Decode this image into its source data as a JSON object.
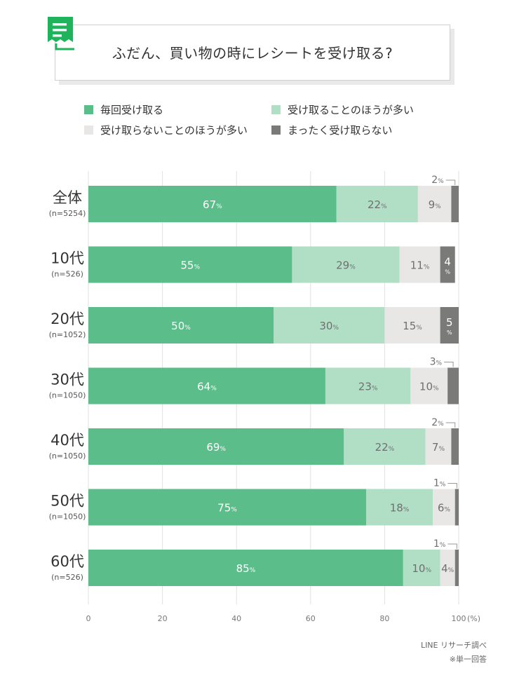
{
  "title": "ふだん、買い物の時にレシートを受け取る?",
  "icon": "receipt-icon",
  "footer": {
    "source": "LINE リサーチ調べ",
    "note": "※単一回答"
  },
  "chart_data": {
    "type": "bar",
    "orientation": "horizontal",
    "stacked": true,
    "unit": "%",
    "xlim": [
      0,
      100
    ],
    "xticks": [
      "0",
      "20",
      "40",
      "60",
      "80",
      "100"
    ],
    "xunit_label": "(%)",
    "grid": true,
    "legend_position": "top",
    "categories": [
      {
        "label": "全体",
        "sub": "(n=5254)"
      },
      {
        "label": "10代",
        "sub": "(n=526)"
      },
      {
        "label": "20代",
        "sub": "(n=1052)"
      },
      {
        "label": "30代",
        "sub": "(n=1050)"
      },
      {
        "label": "40代",
        "sub": "(n=1050)"
      },
      {
        "label": "50代",
        "sub": "(n=1050)"
      },
      {
        "label": "60代",
        "sub": "(n=526)"
      }
    ],
    "series": [
      {
        "name": "毎回受け取る",
        "color": "#5bbd8a",
        "values": [
          67,
          55,
          50,
          64,
          69,
          75,
          85
        ]
      },
      {
        "name": "受け取ることのほうが多い",
        "color": "#b0dfc6",
        "values": [
          22,
          29,
          30,
          23,
          22,
          18,
          10
        ]
      },
      {
        "name": "受け取らないことのほうが多い",
        "color": "#e8e7e6",
        "values": [
          9,
          11,
          15,
          10,
          7,
          6,
          4
        ]
      },
      {
        "name": "まったく受け取らない",
        "color": "#7a7a78",
        "values": [
          2,
          4,
          5,
          3,
          2,
          1,
          1
        ]
      }
    ]
  }
}
